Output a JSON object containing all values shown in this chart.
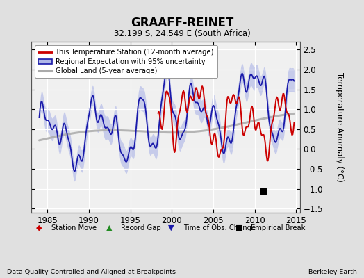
{
  "title": "GRAAFF-REINET",
  "subtitle": "32.199 S, 24.549 E (South Africa)",
  "ylabel": "Temperature Anomaly (°C)",
  "xlim": [
    1983.0,
    2015.5
  ],
  "ylim": [
    -1.6,
    2.7
  ],
  "yticks": [
    -1.5,
    -1.0,
    -0.5,
    0.0,
    0.5,
    1.0,
    1.5,
    2.0,
    2.5
  ],
  "xticks": [
    1985,
    1990,
    1995,
    2000,
    2005,
    2010,
    2015
  ],
  "bg_color": "#e0e0e0",
  "plot_bg_color": "#f0f0f0",
  "grid_color": "#ffffff",
  "red_line_color": "#cc0000",
  "blue_line_color": "#1a1aaa",
  "blue_fill_color": "#b0b8e8",
  "gray_line_color": "#aaaaaa",
  "empirical_break_year": 2011.0,
  "empirical_break_y": -1.05,
  "footer_left": "Data Quality Controlled and Aligned at Breakpoints",
  "footer_right": "Berkeley Earth"
}
